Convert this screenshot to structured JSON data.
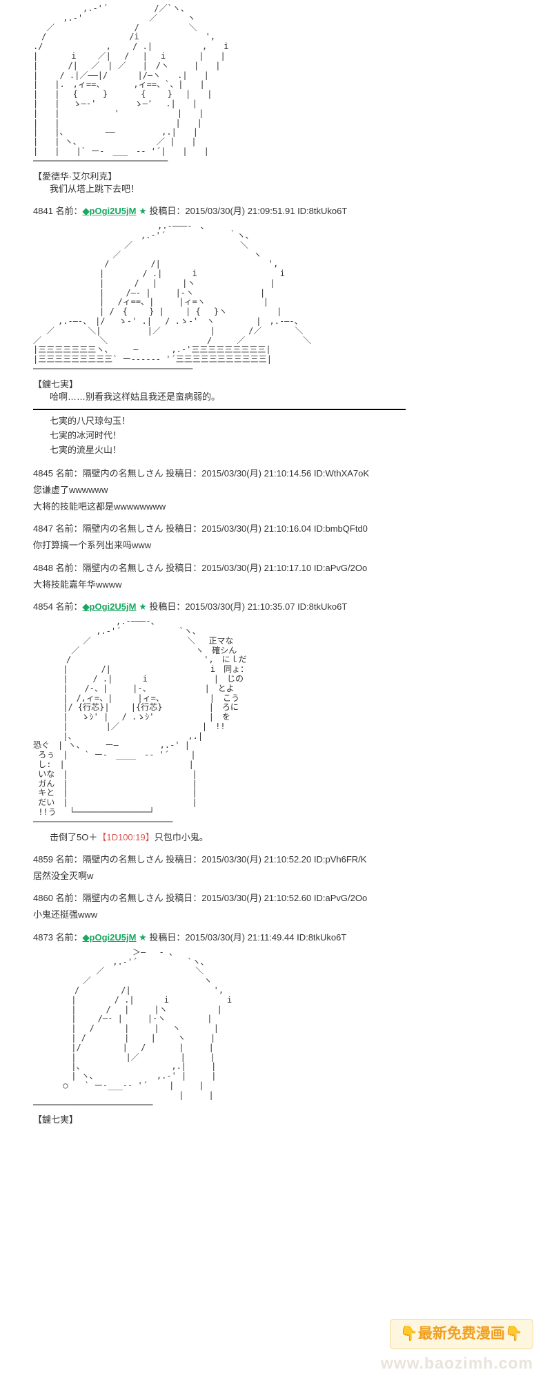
{
  "colors": {
    "text": "#333333",
    "trip": "#19a85f",
    "dice": "#d9534f",
    "bg": "#ffffff",
    "watermark_banner_bg": "#fff6e0",
    "watermark_banner_border": "#f4d990",
    "watermark_banner_text": "#f0a020",
    "watermark_url": "#e4dcd0"
  },
  "ascii1_speaker": "【愛德华·艾尔利克】",
  "ascii1_dialogue": "我们从塔上跳下去吧！",
  "post4841": {
    "num": "4841",
    "name_label": "名前：",
    "trip": "◆pOgi2U5jM",
    "star": "★",
    "post_label": "投稿日：",
    "date": "2015/03/30(月)",
    "time": "21:09:51.91",
    "id": "ID:8tkUko6T"
  },
  "ascii2_speaker": "【鑢七実】",
  "ascii2_dialogue": "哈啊……别看我这样姑且我还是蛮病弱的。",
  "skills": [
    "七実的八尺琼勾玉！",
    "七実的冰河时代！",
    "七実的流星火山！"
  ],
  "post4845": {
    "num": "4845",
    "name_label": "名前：",
    "name": "隔壁内の名無しさん",
    "post_label": "投稿日：",
    "date": "2015/03/30(月)",
    "time": "21:10:14.56",
    "id": "ID:WthXA7oK",
    "body1": "您谦虚了wwwwww",
    "body2": "大将的技能吧这都是wwwwwwww"
  },
  "post4847": {
    "num": "4847",
    "name_label": "名前：",
    "name": "隔壁内の名無しさん",
    "post_label": "投稿日：",
    "date": "2015/03/30(月)",
    "time": "21:10:16.04",
    "id": "ID:bmbQFtd0",
    "body": "你打算搞一个系列出来吗www"
  },
  "post4848": {
    "num": "4848",
    "name_label": "名前：",
    "name": "隔壁内の名無しさん",
    "post_label": "投稿日：",
    "date": "2015/03/30(月)",
    "time": "21:10:17.10",
    "id": "ID:aPvG/2Oo",
    "body": "大将技能嘉年华wwww"
  },
  "post4854": {
    "num": "4854",
    "name_label": "名前：",
    "trip": "◆pOgi2U5jM",
    "star": "★",
    "post_label": "投稿日：",
    "date": "2015/03/30(月)",
    "time": "21:10:35.07",
    "id": "ID:8tkUko6T"
  },
  "ascii3_result_prefix": "击倒了5O＋",
  "ascii3_dice": "【1D100:19】",
  "ascii3_result_suffix": "只包巾小鬼。",
  "post4859": {
    "num": "4859",
    "name_label": "名前：",
    "name": "隔壁内の名無しさん",
    "post_label": "投稿日：",
    "date": "2015/03/30(月)",
    "time": "21:10:52.20",
    "id": "ID:pVh6FR/K",
    "body": "居然没全灭啊w"
  },
  "post4860": {
    "num": "4860",
    "name_label": "名前：",
    "name": "隔壁内の名無しさん",
    "post_label": "投稿日：",
    "date": "2015/03/30(月)",
    "time": "21:10:52.60",
    "id": "ID:aPvG/2Oo",
    "body": "小鬼还挺强www"
  },
  "post4873": {
    "num": "4873",
    "name_label": "名前：",
    "trip": "◆pOgi2U5jM",
    "star": "★",
    "post_label": "投稿日：",
    "date": "2015/03/30(月)",
    "time": "21:11:49.44",
    "id": "ID:8tkUko6T"
  },
  "ascii4_speaker": "【鑢七実】",
  "watermark": {
    "banner": "👇最新免费漫画👇",
    "url": "www.baozimh.com"
  },
  "ascii_art": {
    "note": "ASCII art blocks are large Shift-JIS art portraits; rendered as placeholder monospace blocks",
    "a1": "　　　　　　,.-'´　　　　　 /／`ヽ、\n　　　 ,.-'　　　　　　　　／　　　 ヽ\n　 ／　　　　　　　　　 /　　　　　　＼\n　/　　　　　　　　　　/i　　　　　　　　',\n./　　　　　　　 ,　　 / .|　　　　　　,　　i\n|　　　　i　　 ／|　 /　 |　 i　　　　|　　|\n|　　　 /|　 ／　| ／　　|　/ヽ　　　|　　|\n|　　 / .|／――|/　　　 |/―ヽ　　.|　　|\n|　　|.　,ィ==、　　　　,ィ==、`、|　　|\n|　　|　 {　　　}　　　　{　　 }　 |　　|\n|　　|　 ゝ―‐'　　　　 ゝ―'　 .|　　|\n|　　|　　　　　　 '　　　　　　　|　　|\n|　　|　　　　　　　　　　　　　　|　　|\n|　　|、　　　　　――　　　　　 ,.|　　|\n|　　| ヽ、　　　　　　　　　 ／ |　　|\n|　　|　　|` ー-　___　-‐ '´|　　|　　|\n───────────────────────────",
    "a2": "　　　　　　　　　　　　　　　,.-―――-　、\n　　　　　　　　　　　　　,.-'´　　　　　　　 ｀ヽ、\n　　　　　　　　　　　／　　　　　　　　　　　　　＼\n　　　　　　　　　 ／　　　　　　　　　　　　　　　　ヽ\n　　　　　　　　 /　　　　　/|　　　　　　　　　　　　　',\n　　　　　　　　|　　　　 / .|　　　 i　　　　　　　　　　i\n　　　　　　　　|　　　 /　 |　　　|ヽ　　　　　　　　　|\n　　　　　　　　|　　 /―- |　　　|-ヽ　　　　　　　　|\n　　　　　　　　|　 /ィ==、|　　　|ィ=ヽ　　　　　　　|\n　　　　　　　　| /　{　　 } |　　 | {　 }ヽ　　　　　　|\n　　　,.-―-、　|/　 ゝ-' .|　 / .ゝ-'　ヽ　　　　　|　,.-―-、\n　 ／　　　　＼|　　　　　 |／　　　　　　|　　　　/／　　　　＼\n／　　　　　　　＼　　　　　　　　　　　　/　　　／　　　　　　　＼\n|三三三三三三三ヽ、　　　―　　　　,.-'三三三三三三三三三|\n|三三三三三三三三三` ー-----‐ '´三三三三三三三三三三三|\n────────────────────────────────",
    "a3": "　　　　　　　　　　,.-―――-、\n　　　　　　　 ,.-'´　　　　　　　`ヽ、\n　　　　　　／　　　　　　　　　　　 ＼　 正マな\n　　　　 ／　　　　　　　　　　　　　　ヽ　確シん\n　　　　/　　　　　　　　　　　　　　　　',　にｌだ\n　　　 |　　　　/|　　　　　　　　　　　　i　同ょ：\n　　　 |　　　/ .|　　　 i　　　　　　　　|　じの\n　　　 |　　/-、|　　　|-、　　　　　　　|　とよ\n　　　 |　/,ィ=、|　　　|ィ=、　　　　　　|　こう\n　　　 |/ {行芯}|　　 |{行芯}　　　　　 |　ろに\n　　　 |　 ゝｼ' |　 / .ゝｼ'　　　　　　 |　を\n　　　 |　　　　 |／　　　　　　　　　　|　!!\n　　　 |、　　　　　　　　　　　　　　,.|\n恐ぐ　| ヽ、　　　ー―　　　　　,.-' |\n ろぅ　|　　` ー-　____　-‐ '´　　 |\n し:　|　　　　　　　　　　　　　　　|\n いな　|　　　　　　　　　　　　　　　|\n ガん　|　　　　　　　　　　　　　　　|\n キと　|　　　　　　　　　　　　　　　|\n だい　|　　　　　　　　　　　　　　　|\n !!う　 └───────────────┘\n────────────────────────────",
    "a4": "　　　　　　　　　　　　＞―　 - 、\n　　　　　　　　　 ,.-'´　　　　　　`ヽ、\n　　　　　　　 ／　　　　　　　　　　　＼\n　　　　　　／　　　　　　　　　　　　　 ヽ\n　　　　　/　　　　　/|　　　　　　　　　　',\n　　　　 |　　　　 / .|　　　 i　　　　　　　i\n　　　　 |　　　 /　 |　　　|ヽ　　　　　　|\n　　　　 |　　 /―- |　　　|-ヽ　　　　　|\n　　　　 |　 /　　　 |　　　|　 ヽ　　　　|\n　　　　 | /　　　　 |　　 |　　 ヽ　　　|\n　　　　 |/　　　　　|　 /　　　　|　　　|\n　　　　 |　　　　　　|／　　　　　|　　　|\n　　　　 |、　　　　　　　　　　　,.|　　　|\n　　　　 | ヽ、　　　　　　　 ,.-' |　　　|\n　　　 ○　　` ー-___-‐ '´　　 |　　　|\n　　　　　　　　　　　　　　　　　 |　　　|\n────────────────────────"
  }
}
